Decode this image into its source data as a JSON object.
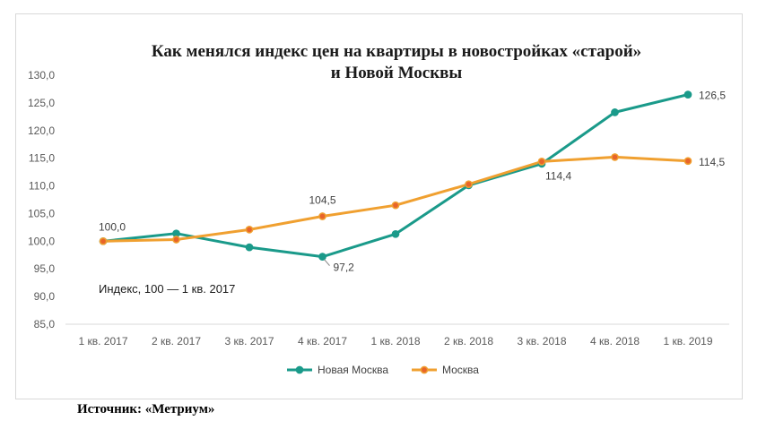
{
  "chart_data": {
    "type": "line",
    "title_line1": "Как менялся индекс цен на квартиры в новостройках «старой»",
    "title_line2": "и Новой Москвы",
    "note": "Индекс, 100 — 1 кв. 2017",
    "categories": [
      "1 кв. 2017",
      "2 кв. 2017",
      "3 кв. 2017",
      "4 кв. 2017",
      "1 кв. 2018",
      "2 кв. 2018",
      "3 кв. 2018",
      "4 кв. 2018",
      "1 кв. 2019"
    ],
    "y_ticks": [
      "85,0",
      "90,0",
      "95,0",
      "100,0",
      "105,0",
      "110,0",
      "115,0",
      "120,0",
      "125,0",
      "130,0"
    ],
    "ylim": [
      85,
      130
    ],
    "series": [
      {
        "name": "Новая Москва",
        "color": "#1a9a8a",
        "marker_fill": "#1a9a8a",
        "values": [
          100.0,
          101.4,
          98.9,
          97.2,
          101.3,
          110.1,
          114.0,
          123.3,
          126.5
        ]
      },
      {
        "name": "Москва",
        "color": "#f0a030",
        "marker_fill": "#e8642a",
        "values": [
          100.0,
          100.3,
          102.1,
          104.5,
          106.5,
          110.3,
          114.4,
          115.2,
          114.5
        ]
      }
    ],
    "data_labels": [
      {
        "series": 0,
        "index": 0,
        "text": "100,0"
      },
      {
        "series": 1,
        "index": 3,
        "text": "104,5"
      },
      {
        "series": 0,
        "index": 3,
        "text": "97,2"
      },
      {
        "series": 1,
        "index": 6,
        "text": "114,4"
      },
      {
        "series": 0,
        "index": 8,
        "text": "126,5"
      },
      {
        "series": 1,
        "index": 8,
        "text": "114,5"
      }
    ],
    "grid": false,
    "legend_position": "bottom"
  },
  "source_text": "Источник: «Метриум»"
}
